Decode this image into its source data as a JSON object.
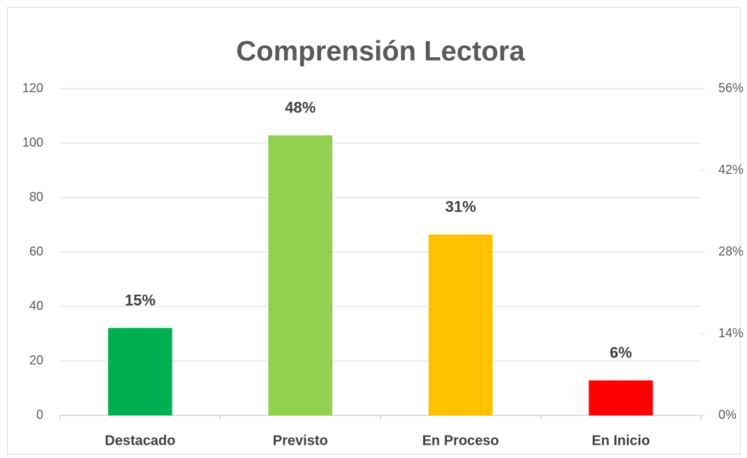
{
  "chart_data": {
    "type": "bar",
    "title": "Comprensión Lectora",
    "categories": [
      "Destacado",
      "Previsto",
      "En Proceso",
      "En Inicio"
    ],
    "series": [
      {
        "axis": "y2",
        "colors": [
          "#00b050",
          "#92d050",
          "#ffc000",
          "#ff0000"
        ],
        "values": [
          15,
          48,
          31,
          6
        ],
        "value_labels": [
          "15%",
          "48%",
          "31%",
          "6%"
        ]
      }
    ],
    "ylim": [
      0,
      120
    ],
    "yticks": [
      0,
      20,
      40,
      60,
      80,
      100,
      120
    ],
    "y2lim": [
      0,
      56
    ],
    "y2ticks": [
      {
        "value": 0,
        "label": "0%"
      },
      {
        "value": 14,
        "label": "14%"
      },
      {
        "value": 28,
        "label": "28%"
      },
      {
        "value": 42,
        "label": "42%"
      },
      {
        "value": 56,
        "label": "56%"
      }
    ],
    "grid": true
  }
}
